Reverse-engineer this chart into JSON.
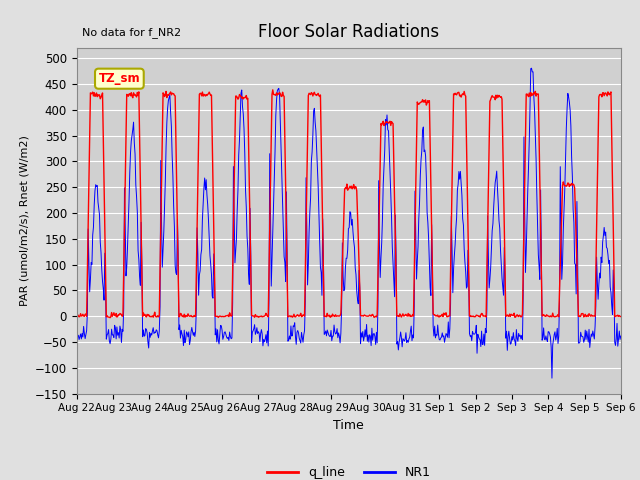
{
  "title": "Floor Solar Radiations",
  "xlabel": "Time",
  "ylabel": "PAR (umol/m2/s), Rnet (W/m2)",
  "note": "No data for f_NR2",
  "legend_label": "TZ_sm",
  "ylim": [
    -150,
    520
  ],
  "yticks": [
    -150,
    -100,
    -50,
    0,
    50,
    100,
    150,
    200,
    250,
    300,
    350,
    400,
    450,
    500
  ],
  "xtick_labels": [
    "Aug 22",
    "Aug 23",
    "Aug 24",
    "Aug 25",
    "Aug 26",
    "Aug 27",
    "Aug 28",
    "Aug 29",
    "Aug 30",
    "Aug 31",
    "Sep 1",
    "Sep 2",
    "Sep 3",
    "Sep 4",
    "Sep 5",
    "Sep 6"
  ],
  "line1_color": "red",
  "line2_color": "blue",
  "line1_label": "q_line",
  "line2_label": "NR1",
  "background_color": "#e0e0e0",
  "plot_bg_color": "#d0d0d0",
  "legend_box_color": "#ffffcc",
  "legend_box_edge": "#aaa800"
}
